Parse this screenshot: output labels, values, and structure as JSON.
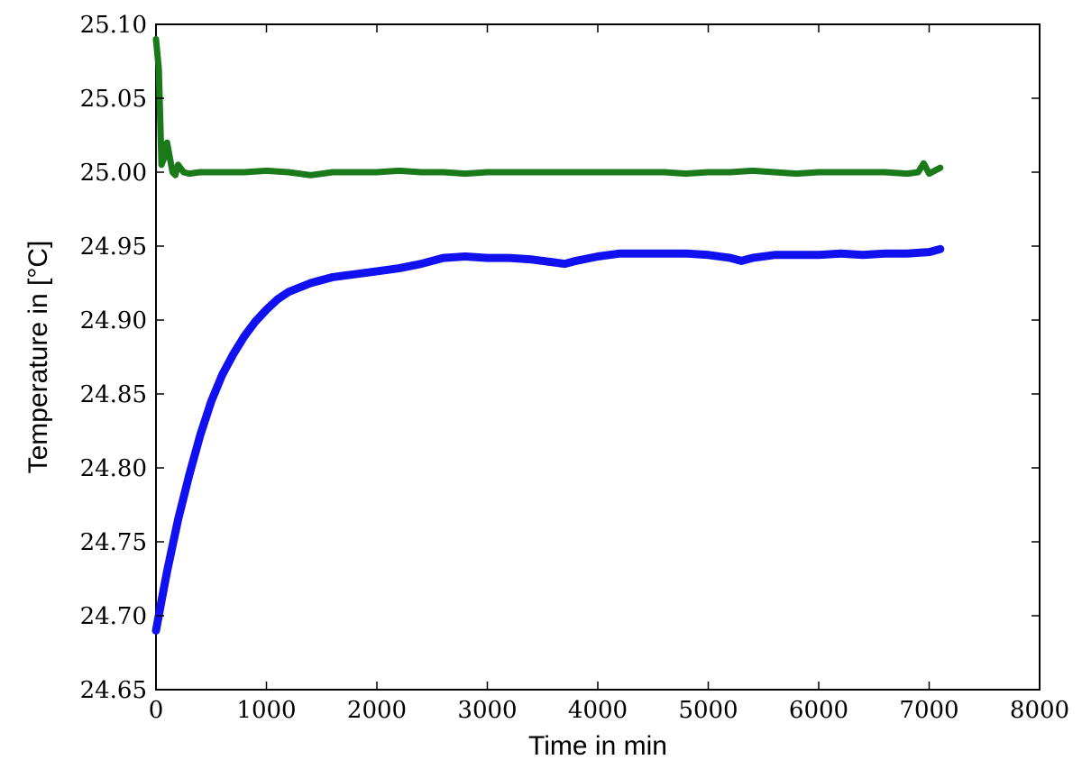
{
  "chart_data": {
    "type": "line",
    "xlabel": "Time in min",
    "ylabel": "Temperature in [°C]",
    "xlim": [
      0,
      8000
    ],
    "ylim": [
      24.65,
      25.1
    ],
    "xticks": [
      0,
      1000,
      2000,
      3000,
      4000,
      5000,
      6000,
      7000,
      8000
    ],
    "yticks": [
      24.65,
      24.7,
      24.75,
      24.8,
      24.85,
      24.9,
      24.95,
      25.0,
      25.05,
      25.1
    ],
    "xtick_labels": [
      "0",
      "1000",
      "2000",
      "3000",
      "4000",
      "5000",
      "6000",
      "7000",
      "8000"
    ],
    "ytick_labels": [
      "24.65",
      "24.70",
      "24.75",
      "24.80",
      "24.85",
      "24.90",
      "24.95",
      "25.00",
      "25.05",
      "25.10"
    ],
    "grid": false,
    "legend": false,
    "series": [
      {
        "color": "#1a7a1a",
        "x": [
          0,
          25,
          50,
          75,
          100,
          125,
          150,
          175,
          200,
          250,
          300,
          400,
          600,
          800,
          1000,
          1200,
          1400,
          1600,
          1800,
          2000,
          2200,
          2400,
          2600,
          2800,
          3000,
          3200,
          3400,
          3600,
          3800,
          4000,
          4200,
          4400,
          4600,
          4800,
          5000,
          5200,
          5400,
          5600,
          5800,
          6000,
          6200,
          6400,
          6600,
          6800,
          6900,
          6950,
          7000,
          7050,
          7100
        ],
        "y": [
          25.09,
          25.07,
          25.005,
          25.01,
          25.02,
          25.01,
          25.0,
          24.998,
          25.005,
          25.0,
          24.999,
          25.0,
          25.0,
          25.0,
          25.001,
          25.0,
          24.998,
          25.0,
          25.0,
          25.0,
          25.001,
          25.0,
          25.0,
          24.999,
          25.0,
          25.0,
          25.0,
          25.0,
          25.0,
          25.0,
          25.0,
          25.0,
          25.0,
          24.999,
          25.0,
          25.0,
          25.001,
          25.0,
          24.999,
          25.0,
          25.0,
          25.0,
          25.0,
          24.999,
          25.0,
          25.006,
          24.999,
          25.001,
          25.003
        ]
      },
      {
        "color": "#1010f0",
        "x": [
          0,
          50,
          100,
          200,
          300,
          400,
          500,
          600,
          700,
          800,
          900,
          1000,
          1100,
          1200,
          1400,
          1600,
          1800,
          2000,
          2200,
          2400,
          2600,
          2800,
          3000,
          3200,
          3400,
          3600,
          3700,
          3800,
          4000,
          4200,
          4400,
          4600,
          4800,
          5000,
          5200,
          5300,
          5400,
          5600,
          5800,
          6000,
          6200,
          6400,
          6600,
          6800,
          7000,
          7100
        ],
        "y": [
          24.69,
          24.71,
          24.73,
          24.765,
          24.795,
          24.822,
          24.845,
          24.863,
          24.877,
          24.889,
          24.899,
          24.907,
          24.914,
          24.919,
          24.925,
          24.929,
          24.931,
          24.933,
          24.935,
          24.938,
          24.942,
          24.943,
          24.942,
          24.942,
          24.941,
          24.939,
          24.938,
          24.94,
          24.943,
          24.945,
          24.945,
          24.945,
          24.945,
          24.944,
          24.942,
          24.94,
          24.942,
          24.944,
          24.944,
          24.944,
          24.945,
          24.944,
          24.945,
          24.945,
          24.946,
          24.948
        ]
      }
    ]
  }
}
